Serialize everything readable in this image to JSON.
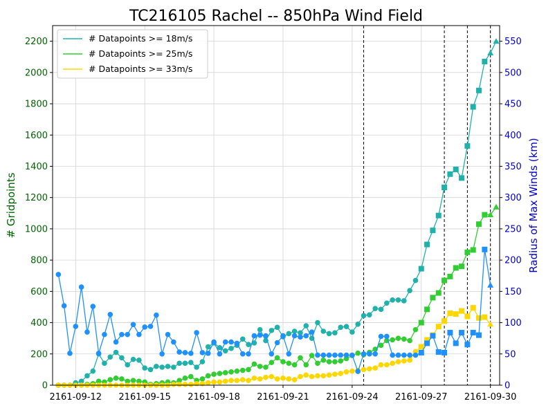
{
  "chart_data": {
    "type": "line",
    "title": "TC216105 Rachel -- 850hPa Wind Field",
    "ylabel_left": "# Gridpoints",
    "ylabel_right": "Radius of Max Winds (km)",
    "x_tick_labels": [
      "2161-09-12",
      "2161-09-15",
      "2161-09-18",
      "2161-09-21",
      "2161-09-24",
      "2161-09-27",
      "2161-09-30"
    ],
    "y_left_ticks": [
      "0",
      "200",
      "400",
      "600",
      "800",
      "1000",
      "1200",
      "1400",
      "1600",
      "1800",
      "2000",
      "2200"
    ],
    "y_right_ticks": [
      "0",
      "50",
      "100",
      "150",
      "200",
      "250",
      "300",
      "350",
      "400",
      "450",
      "500",
      "550"
    ],
    "ylim_left": [
      0,
      2300
    ],
    "ylim_right": [
      0,
      575
    ],
    "xlim_days": [
      -1.0,
      18.4
    ],
    "vertical_lines_days": [
      12.5,
      16.0,
      17.0,
      18.0
    ],
    "grid": true,
    "legend_position": "top-left",
    "colors": {
      "ds18": "#20b2aa",
      "ds25": "#32cd32",
      "ds33": "#ffd700",
      "rmw": "#1e90ff",
      "left_axis": "#006400",
      "right_axis": "#0000cd"
    },
    "series": [
      {
        "name": "# Datapoints >= 18m/s",
        "color": "#20b2aa",
        "axis": "left",
        "start_day": -0.75,
        "step_day": 0.25,
        "values": [
          0,
          0,
          0,
          15,
          25,
          60,
          90,
          200,
          140,
          180,
          210,
          175,
          130,
          165,
          160,
          110,
          100,
          120,
          115,
          120,
          115,
          140,
          140,
          145,
          115,
          150,
          245,
          270,
          240,
          220,
          235,
          255,
          295,
          260,
          270,
          355,
          285,
          350,
          370,
          310,
          330,
          345,
          335,
          380,
          300,
          400,
          345,
          330,
          335,
          370,
          375,
          340,
          390,
          445,
          450,
          490,
          485,
          525,
          545,
          545,
          540,
          605,
          670,
          745,
          900,
          990,
          1085,
          1265,
          1350,
          1380,
          1325,
          1530,
          1780,
          1885,
          2070,
          2125,
          2200
        ],
        "markers": {
          "circle_until_day": 14.75,
          "square_until_day": 17.75,
          "triangle_from_day": 18.0
        }
      },
      {
        "name": "# Datapoints >= 25m/s",
        "color": "#32cd32",
        "axis": "left",
        "start_day": -0.75,
        "step_day": 0.25,
        "values": [
          0,
          0,
          0,
          0,
          0,
          5,
          10,
          25,
          20,
          35,
          45,
          40,
          25,
          30,
          25,
          20,
          5,
          10,
          15,
          20,
          15,
          30,
          45,
          55,
          30,
          40,
          60,
          70,
          75,
          80,
          85,
          90,
          95,
          100,
          135,
          120,
          115,
          145,
          175,
          150,
          140,
          130,
          175,
          130,
          190,
          140,
          160,
          150,
          150,
          155,
          170,
          190,
          205,
          195,
          210,
          230,
          255,
          285,
          290,
          300,
          295,
          285,
          355,
          400,
          485,
          560,
          590,
          670,
          695,
          750,
          760,
          850,
          865,
          1030,
          1090,
          1090,
          1140
        ],
        "markers": {
          "circle_until_day": 14.75,
          "square_until_day": 17.75,
          "triangle_from_day": 18.0
        }
      },
      {
        "name": "# Datapoints >= 33m/s",
        "color": "#ffd700",
        "axis": "left",
        "start_day": -0.75,
        "step_day": 0.25,
        "values": [
          0,
          0,
          0,
          0,
          0,
          0,
          0,
          0,
          0,
          0,
          0,
          0,
          0,
          0,
          0,
          0,
          0,
          0,
          0,
          0,
          5,
          5,
          5,
          5,
          10,
          10,
          15,
          20,
          20,
          25,
          30,
          30,
          35,
          30,
          45,
          40,
          50,
          55,
          40,
          45,
          40,
          35,
          55,
          65,
          55,
          60,
          60,
          65,
          70,
          75,
          85,
          90,
          95,
          100,
          105,
          110,
          130,
          130,
          140,
          150,
          155,
          160,
          215,
          245,
          290,
          320,
          375,
          410,
          460,
          455,
          475,
          440,
          495,
          430,
          435,
          390
        ],
        "markers": {
          "circle_until_day": 14.75,
          "square_until_day": 17.75,
          "triangle_from_day": 18.0
        }
      },
      {
        "name": "",
        "label_hint": "Radius of Max Winds (km)",
        "color": "#1e90ff",
        "axis": "right",
        "start_day": -0.75,
        "step_day": 0.25,
        "values": [
          177,
          127,
          51,
          94,
          157,
          85,
          126,
          51,
          81,
          113,
          69,
          81,
          81,
          97,
          81,
          93,
          94,
          112,
          50,
          81,
          69,
          53,
          52,
          51,
          84,
          52,
          51,
          69,
          50,
          69,
          69,
          67,
          50,
          50,
          79,
          80,
          79,
          50,
          68,
          79,
          50,
          79,
          77,
          79,
          85,
          48,
          48,
          48,
          48,
          48,
          48,
          48,
          22,
          50,
          50,
          50,
          78,
          78,
          48,
          48,
          48,
          48,
          48,
          52,
          67,
          79,
          53,
          52,
          84,
          67,
          84,
          65,
          84,
          80,
          217,
          160
        ],
        "markers": {
          "circle_until_day": 14.75,
          "square_until_day": 17.75,
          "triangle_from_day": 18.0
        }
      }
    ]
  }
}
